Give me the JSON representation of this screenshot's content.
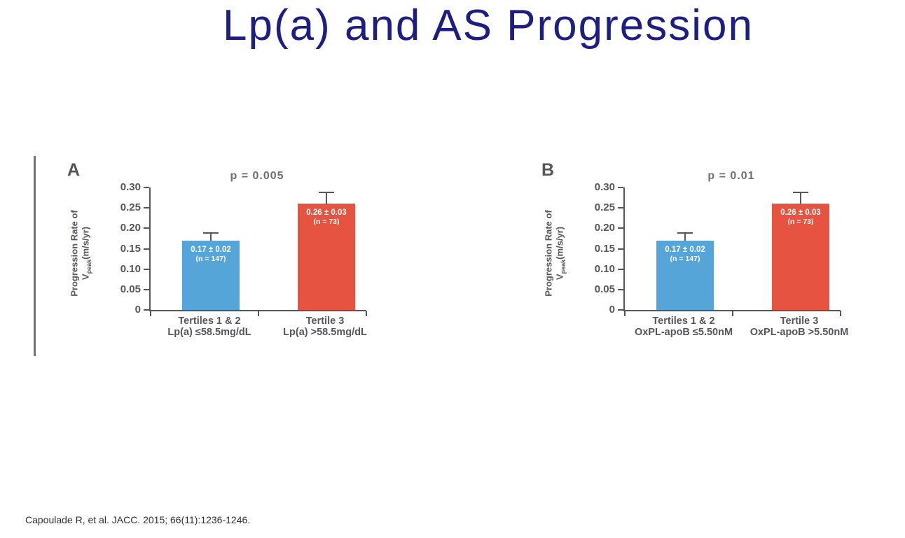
{
  "slide": {
    "title": "Lp(a) and AS Progression",
    "citation": "Capoulade R, et al.  JACC. 2015; 66(11):1236-1246."
  },
  "colors": {
    "title_navy": "#1d1d82",
    "bar_blue": "#55a5d8",
    "bar_red": "#e65340",
    "axis_gray": "#55565a",
    "pvalue_gray": "#6e6e72",
    "divider_gray": "#717276"
  },
  "chart_data": [
    {
      "type": "bar",
      "panel_label": "A",
      "p_value": "p = 0.005",
      "ylabel_line1": "Progression Rate of",
      "ylabel_v": "V",
      "ylabel_sub": "peak",
      "ylabel_units": "(m/s/yr)",
      "ylim": [
        0,
        0.3
      ],
      "yticks": [
        "0.30",
        "0.25",
        "0.20",
        "0.15",
        "0.10",
        "0.05",
        "0"
      ],
      "grid": false,
      "categories": [
        {
          "line1": "Tertiles 1 & 2",
          "line2": "Lp(a) ≤58.5mg/dL"
        },
        {
          "line1": "Tertile 3",
          "line2": "Lp(a) >58.5mg/dL"
        }
      ],
      "series": [
        {
          "name": "Tertiles 1 & 2",
          "value": 0.17,
          "error": 0.02,
          "n": 147,
          "label_line1": "0.17 ± 0.02",
          "label_line2": "(n = 147)",
          "color": "bar_blue"
        },
        {
          "name": "Tertile 3",
          "value": 0.26,
          "error": 0.03,
          "n": 73,
          "label_line1": "0.26 ± 0.03",
          "label_line2": "(n = 73)",
          "color": "bar_red"
        }
      ]
    },
    {
      "type": "bar",
      "panel_label": "B",
      "p_value": "p = 0.01",
      "ylabel_line1": "Progression Rate of",
      "ylabel_v": "V",
      "ylabel_sub": "peak",
      "ylabel_units": "(m/s/yr)",
      "ylim": [
        0,
        0.3
      ],
      "yticks": [
        "0.30",
        "0.25",
        "0.20",
        "0.15",
        "0.10",
        "0.05",
        "0"
      ],
      "grid": false,
      "categories": [
        {
          "line1": "Tertiles 1 & 2",
          "line2": "OxPL-apoB ≤5.50nM"
        },
        {
          "line1": "Tertile 3",
          "line2": "OxPL-apoB >5.50nM"
        }
      ],
      "series": [
        {
          "name": "Tertiles 1 & 2",
          "value": 0.17,
          "error": 0.02,
          "n": 147,
          "label_line1": "0.17 ± 0.02",
          "label_line2": "(n = 147)",
          "color": "bar_blue"
        },
        {
          "name": "Tertile 3",
          "value": 0.26,
          "error": 0.03,
          "n": 73,
          "label_line1": "0.26 ± 0.03",
          "label_line2": "(n = 73)",
          "color": "bar_red"
        }
      ]
    }
  ]
}
